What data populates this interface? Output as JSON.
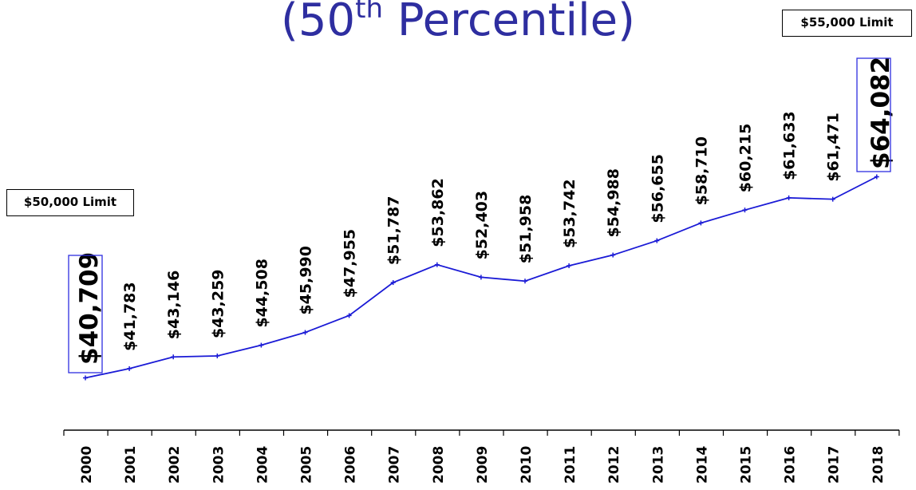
{
  "title": {
    "main": "(50",
    "sup": "th",
    "rest": " Percentile)"
  },
  "annotations": {
    "limit_2000": "$50,000 Limit",
    "limit_2018": "$55,000 Limit"
  },
  "colors": {
    "line": "#1a1ad6",
    "title": "#2e2ea0",
    "box": "#2e2ee0"
  },
  "chart_data": {
    "type": "line",
    "title": "(50th Percentile)",
    "xlabel": "",
    "ylabel": "",
    "x": [
      "2000",
      "2001",
      "2002",
      "2003",
      "2004",
      "2005",
      "2006",
      "2007",
      "2008",
      "2009",
      "2010",
      "2011",
      "2012",
      "2013",
      "2014",
      "2015",
      "2016",
      "2017",
      "2018"
    ],
    "values": [
      40709,
      41783,
      43146,
      43259,
      44508,
      45990,
      47955,
      51787,
      53862,
      52403,
      51958,
      53742,
      54988,
      56655,
      58710,
      60215,
      61633,
      61471,
      64082
    ],
    "labels": [
      "$40,709",
      "$41,783",
      "$43,146",
      "$43,259",
      "$44,508",
      "$45,990",
      "$47,955",
      "$51,787",
      "$53,862",
      "$52,403",
      "$51,958",
      "$53,742",
      "$54,988",
      "$56,655",
      "$58,710",
      "$60,215",
      "$61,633",
      "$61,471",
      "$64,082"
    ],
    "ylim": [
      30000,
      66000
    ],
    "grid": false,
    "legend": "none"
  }
}
